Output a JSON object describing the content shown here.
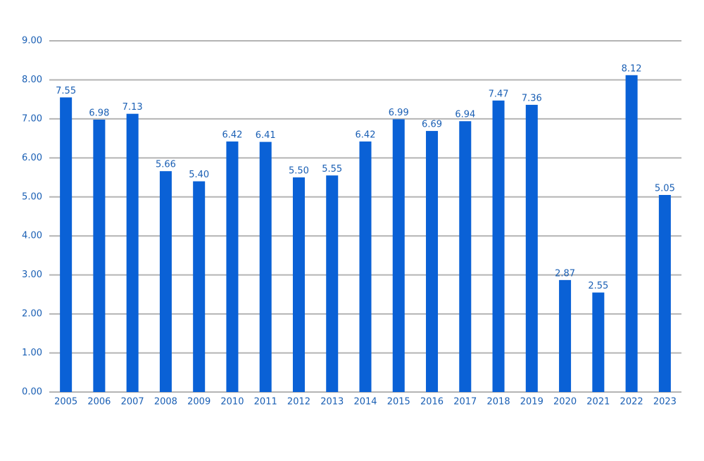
{
  "chart_data": {
    "type": "bar",
    "categories": [
      "2005",
      "2006",
      "2007",
      "2008",
      "2009",
      "2010",
      "2011",
      "2012",
      "2013",
      "2014",
      "2015",
      "2016",
      "2017",
      "2018",
      "2019",
      "2020",
      "2021",
      "2022",
      "2023"
    ],
    "values": [
      7.55,
      6.98,
      7.13,
      5.66,
      5.4,
      6.42,
      6.41,
      5.5,
      5.55,
      6.42,
      6.99,
      6.69,
      6.94,
      7.47,
      7.36,
      2.87,
      2.55,
      8.12,
      5.05
    ],
    "value_labels": [
      "7.55",
      "6.98",
      "7.13",
      "5.66",
      "5.40",
      "6.42",
      "6.41",
      "5.50",
      "5.55",
      "6.42",
      "6.99",
      "6.69",
      "6.94",
      "7.47",
      "7.36",
      "2.87",
      "2.55",
      "8.12",
      "5.05"
    ],
    "color": "#0a61d6",
    "ylim": [
      0,
      9
    ],
    "yticks": [
      {
        "value": 0,
        "label": "0.00"
      },
      {
        "value": 1,
        "label": "1.00"
      },
      {
        "value": 2,
        "label": "2.00"
      },
      {
        "value": 3,
        "label": "3.00"
      },
      {
        "value": 4,
        "label": "4.00"
      },
      {
        "value": 5,
        "label": "5.00"
      },
      {
        "value": 6,
        "label": "6.00"
      },
      {
        "value": 7,
        "label": "7.00"
      },
      {
        "value": 8,
        "label": "8.00"
      },
      {
        "value": 9,
        "label": "9.00"
      }
    ],
    "grid": true
  }
}
